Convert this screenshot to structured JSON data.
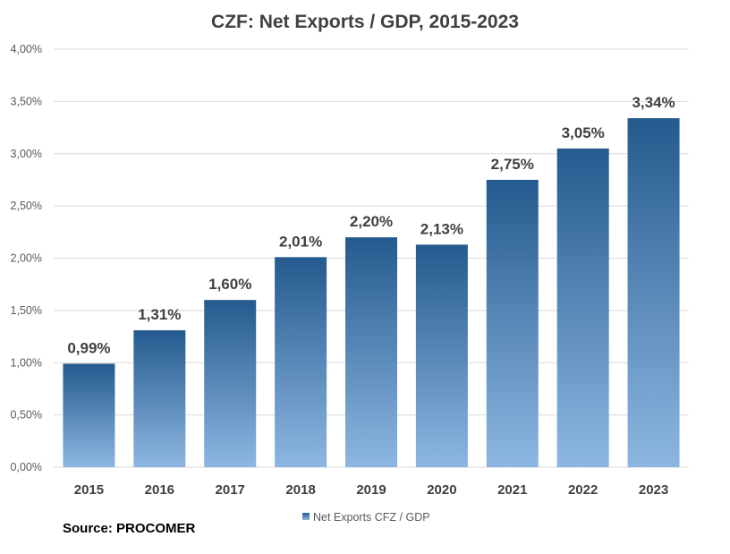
{
  "source_label": "Source: PROCOMER",
  "colors": {
    "bar_dark": "#245A8E",
    "bar_light": "#8DB7E2",
    "grid": "#D9D9D9"
  },
  "chart_data": {
    "type": "bar",
    "title": "CZF: Net Exports / GDP, 2015-2023",
    "xlabel": "",
    "ylabel": "",
    "categories": [
      "2015",
      "2016",
      "2017",
      "2018",
      "2019",
      "2020",
      "2021",
      "2022",
      "2023"
    ],
    "series": [
      {
        "name": "Net Exports CFZ / GDP",
        "values": [
          0.99,
          1.31,
          1.6,
          2.01,
          2.2,
          2.13,
          2.75,
          3.05,
          3.34
        ],
        "labels": [
          "0,99%",
          "1,31%",
          "1,60%",
          "2,01%",
          "2,20%",
          "2,13%",
          "2,75%",
          "3,05%",
          "3,34%"
        ]
      }
    ],
    "ylim": [
      0,
      4
    ],
    "yticks": [
      0,
      0.5,
      1,
      1.5,
      2,
      2.5,
      3,
      3.5,
      4
    ],
    "ytick_labels": [
      "0,00%",
      "0,50%",
      "1,00%",
      "1,50%",
      "2,00%",
      "2,50%",
      "3,00%",
      "3,50%",
      "4,00%"
    ],
    "grid": true,
    "legend_position": "bottom"
  }
}
